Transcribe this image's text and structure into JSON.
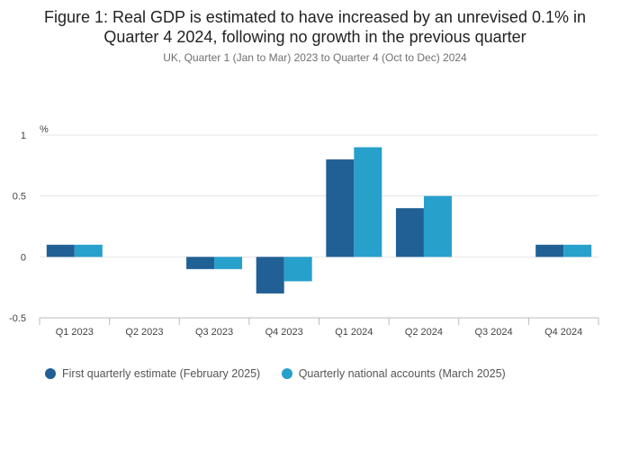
{
  "title_line1": "Figure 1: Real GDP is estimated to have increased by an unrevised 0.1% in",
  "title_line2": "Quarter 4 2024, following no growth in the previous quarter",
  "subtitle": "UK, Quarter 1 (Jan to Mar) 2023 to Quarter 4 (Oct to Dec) 2024",
  "colors": {
    "series1": "#206095",
    "series2": "#27a0cc",
    "grid": "#e4e4e4",
    "axis": "#bbbbbb"
  },
  "chart_data": {
    "type": "bar",
    "ylabel": "%",
    "ylim": [
      -0.5,
      1
    ],
    "yticks": [
      1,
      0.5,
      0,
      -0.5
    ],
    "ytick_labels": [
      "1",
      "0.5",
      "0",
      "-0.5"
    ],
    "categories": [
      "Q1 2023",
      "Q2 2023",
      "Q3 2023",
      "Q4 2023",
      "Q1 2024",
      "Q2 2024",
      "Q3 2024",
      "Q4 2024"
    ],
    "series": [
      {
        "name": "First quarterly estimate (February 2025)",
        "values": [
          0.1,
          0.0,
          -0.1,
          -0.3,
          0.8,
          0.4,
          0.0,
          0.1
        ]
      },
      {
        "name": "Quarterly national accounts (March 2025)",
        "values": [
          0.1,
          0.0,
          -0.1,
          -0.2,
          0.9,
          0.5,
          0.0,
          0.1
        ]
      }
    ],
    "grid": true,
    "legend_position": "bottom-left"
  }
}
